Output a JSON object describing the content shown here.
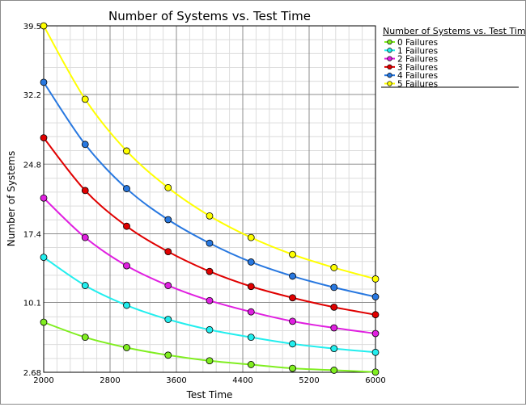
{
  "chart_data": {
    "type": "line",
    "title": "Number of Systems vs. Test Time",
    "xlabel": "Test Time",
    "ylabel": "Number of Systems",
    "xlim": [
      2000,
      6000
    ],
    "ylim": [
      2.68,
      39.5
    ],
    "x_ticks": [
      "2000",
      "2800",
      "3600",
      "4400",
      "5200",
      "6000"
    ],
    "y_ticks": [
      "2.68",
      "10.1",
      "17.4",
      "24.8",
      "32.2",
      "39.5"
    ],
    "x_tick_values": [
      2000,
      2800,
      3600,
      4400,
      5200,
      6000
    ],
    "y_tick_values": [
      2.68,
      10.1,
      17.4,
      24.8,
      32.2,
      39.5
    ],
    "grid": true,
    "legend_title": "Number of Systems vs. Test Time",
    "legend_position": "right",
    "x": [
      2000,
      2500,
      3000,
      3500,
      4000,
      4500,
      5000,
      5500,
      6000
    ],
    "series": [
      {
        "name": "0 Failures",
        "color": "#80ee20",
        "values": [
          8.0,
          6.4,
          5.3,
          4.5,
          3.9,
          3.5,
          3.1,
          2.9,
          2.7
        ]
      },
      {
        "name": "1 Failures",
        "color": "#22eeee",
        "values": [
          14.9,
          11.9,
          9.8,
          8.3,
          7.2,
          6.4,
          5.7,
          5.2,
          4.8
        ]
      },
      {
        "name": "2 Failures",
        "color": "#e020e0",
        "values": [
          21.2,
          17.0,
          14.0,
          11.9,
          10.3,
          9.1,
          8.1,
          7.4,
          6.8
        ]
      },
      {
        "name": "3 Failures",
        "color": "#e00000",
        "values": [
          27.6,
          22.0,
          18.2,
          15.5,
          13.4,
          11.8,
          10.6,
          9.6,
          8.8
        ]
      },
      {
        "name": "4 Failures",
        "color": "#2878e0",
        "values": [
          33.5,
          26.9,
          22.2,
          18.9,
          16.4,
          14.4,
          12.9,
          11.7,
          10.7
        ]
      },
      {
        "name": "5 Failures",
        "color": "#ffff00",
        "values": [
          39.5,
          31.7,
          26.2,
          22.3,
          19.3,
          17.0,
          15.2,
          13.8,
          12.6
        ]
      }
    ]
  }
}
